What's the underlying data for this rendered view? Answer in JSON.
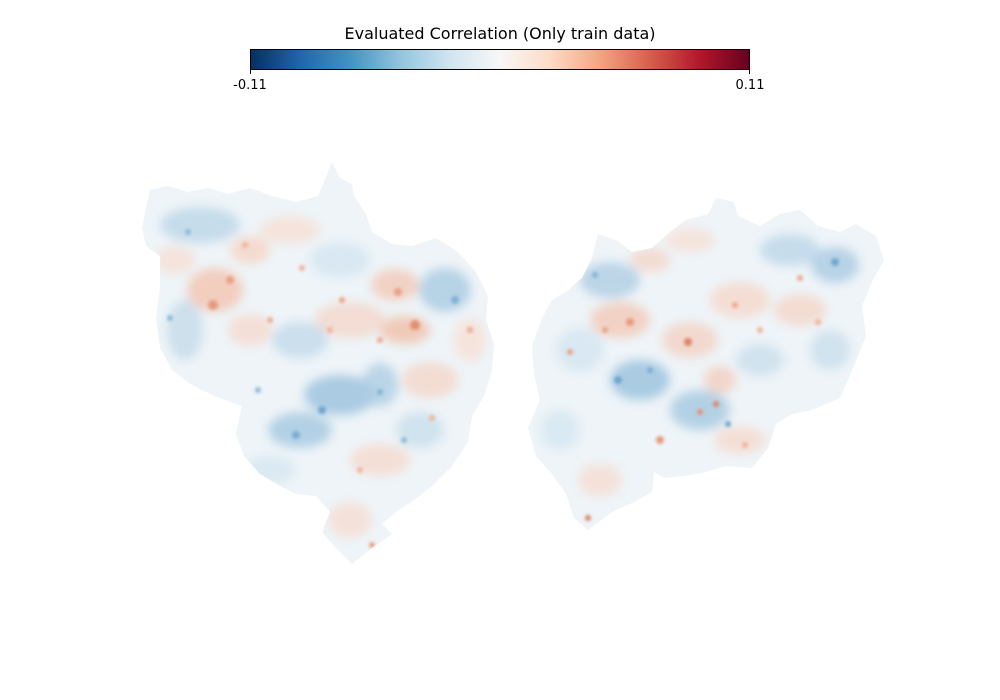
{
  "figure": {
    "title": "Evaluated Correlation (Only train data)",
    "colorbar": {
      "colormap": "RdBu_r",
      "min_label": "-0.11",
      "max_label": "0.11",
      "vmin": -0.11,
      "vmax": 0.11,
      "stops": [
        "#053061",
        "#2166ac",
        "#4393c3",
        "#92c5de",
        "#d1e5f0",
        "#f7f7f7",
        "#fddbc7",
        "#f4a582",
        "#d6604d",
        "#b2182b",
        "#67001f"
      ]
    },
    "hemispheres": [
      {
        "side": "left"
      },
      {
        "side": "right"
      }
    ]
  }
}
